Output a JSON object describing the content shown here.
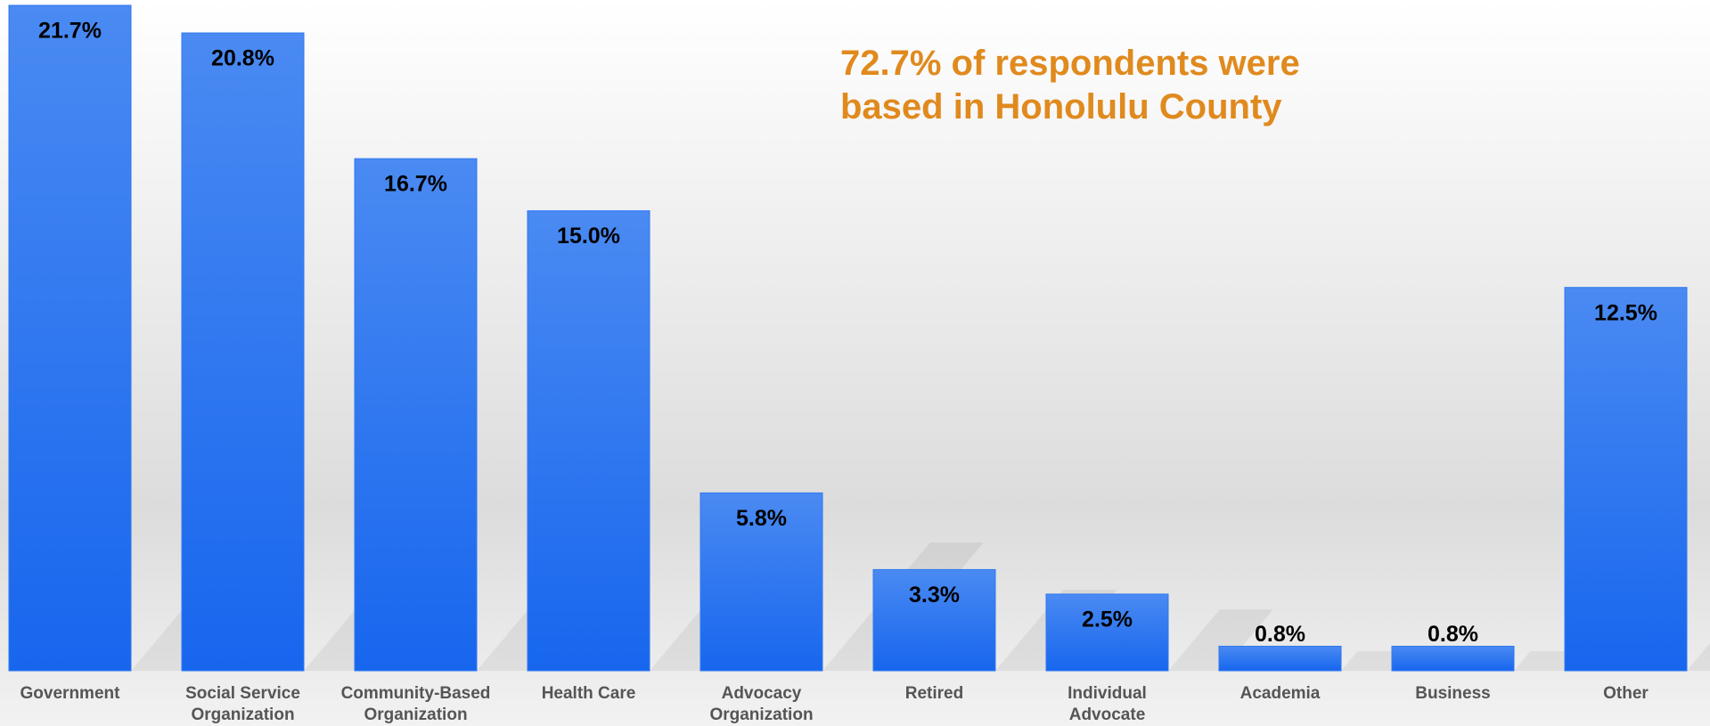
{
  "chart_data": {
    "type": "bar",
    "annotation": "72.7% of respondents were\nbased in Honolulu County",
    "categories": [
      "Government",
      "Social Service\nOrganization",
      "Community-Based\nOrganization",
      "Health Care",
      "Advocacy\nOrganization",
      "Retired",
      "Individual\nAdvocate",
      "Academia",
      "Business",
      "Other"
    ],
    "values": [
      21.7,
      20.8,
      16.7,
      15.0,
      5.8,
      3.3,
      2.5,
      0.8,
      0.8,
      12.5
    ],
    "value_labels": [
      "21.7%",
      "20.8%",
      "16.7%",
      "15.0%",
      "5.8%",
      "3.3%",
      "2.5%",
      "0.8%",
      "0.8%",
      "12.5%"
    ],
    "color": "#2f78f0",
    "annotation_color": "#e08a1e"
  }
}
